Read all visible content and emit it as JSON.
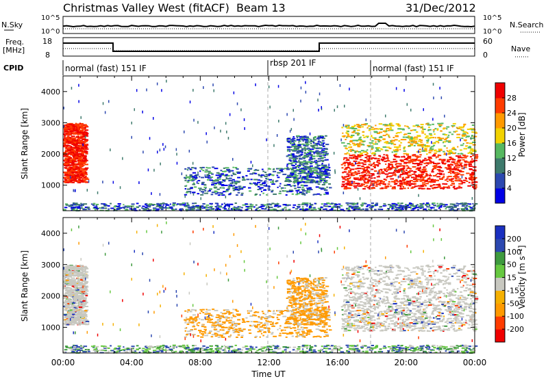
{
  "header": {
    "title": "Christmas Valley West (fitACF)",
    "beam": "Beam 13",
    "date": "31/Dec/2012"
  },
  "status_panels": {
    "nsky_label": "N.Sky",
    "nsky_ticks": [
      "10^5",
      "10^0"
    ],
    "nsearch_label": "N.Search",
    "nsearch_ticks": [
      "10^5",
      "10^0"
    ],
    "freq_label_line1": "Freq.",
    "freq_label_line2": "[MHz]",
    "freq_ticks": [
      "18",
      "8"
    ],
    "nave_label": "Nave",
    "nave_ticks": [
      "60",
      "0"
    ],
    "cpid_label": "CPID",
    "cpid_segments": [
      {
        "label": "normal (fast) 151 IF",
        "start_hour": 0
      },
      {
        "label": "rbsp 201 IF",
        "start_hour": 12
      },
      {
        "label": "normal (fast) 151 IF",
        "start_hour": 18
      }
    ]
  },
  "chart_data": [
    {
      "type": "heatmap",
      "name": "power",
      "ylabel": "Slant Range [km]",
      "xlim_hours": [
        0,
        24
      ],
      "ylim": [
        180,
        4500
      ],
      "yticks": [
        1000,
        2000,
        3000,
        4000
      ],
      "colorbar_label": "Power [dB]",
      "colorbar_ticks": [
        "28",
        "24",
        "20",
        "16",
        "12",
        "8",
        "4"
      ],
      "colorbar_colors": [
        "#0000e6",
        "#2c48b0",
        "#3e7a6c",
        "#56b860",
        "#f2d200",
        "#ff9a00",
        "#ff3c00",
        "#f00000"
      ],
      "features": [
        {
          "t": [
            0.0,
            1.3
          ],
          "r": [
            1100,
            3000
          ],
          "level": "high"
        },
        {
          "t": [
            7.0,
            15.5
          ],
          "r": [
            700,
            1600
          ],
          "level": "low"
        },
        {
          "t": [
            13.0,
            15.3
          ],
          "r": [
            1100,
            2600
          ],
          "level": "low"
        },
        {
          "t": [
            16.2,
            24.0
          ],
          "r": [
            900,
            2000
          ],
          "level": "high"
        },
        {
          "t": [
            16.2,
            24.0
          ],
          "r": [
            2000,
            3000
          ],
          "level": "mid"
        },
        {
          "t": [
            0.0,
            24.0
          ],
          "r": [
            200,
            450
          ],
          "level": "ground"
        }
      ]
    },
    {
      "type": "heatmap",
      "name": "velocity",
      "ylabel": "Slant Range [km]",
      "xlabel": "Time UT",
      "xlim_hours": [
        0,
        24
      ],
      "xticks": [
        "00:00",
        "04:00",
        "08:00",
        "12:00",
        "16:00",
        "20:00",
        "00:00"
      ],
      "ylim": [
        180,
        4500
      ],
      "yticks": [
        1000,
        2000,
        3000,
        4000
      ],
      "colorbar_label": "Velocity [m s⁻¹]",
      "colorbar_ticks": [
        "200",
        "100",
        "50",
        "15",
        "-15",
        "-50",
        "-100",
        "-200"
      ],
      "colorbar_colors": [
        "#f00000",
        "#ff3c00",
        "#ff9a00",
        "#f5b000",
        "#c8c8c0",
        "#66c840",
        "#3e9a3e",
        "#2c48b0",
        "#1a30c0"
      ]
    }
  ]
}
